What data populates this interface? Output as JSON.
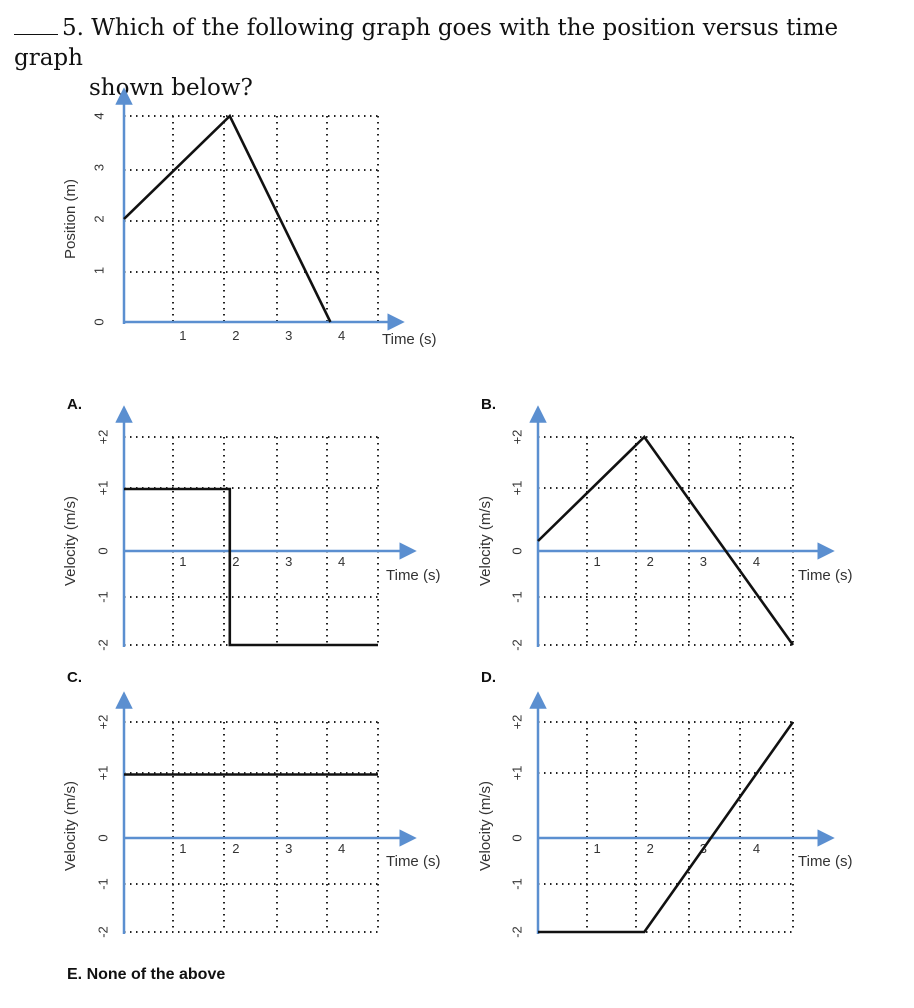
{
  "question": {
    "number": "5.",
    "line1": "Which of the following graph goes with the position versus time graph",
    "line2": "shown below?"
  },
  "chart_data": [
    {
      "id": "position",
      "type": "line",
      "xlabel": "Time (s)",
      "ylabel": "Position (m)",
      "x_ticks": [
        "1",
        "2",
        "3",
        "4"
      ],
      "y_ticks": [
        "0",
        "1",
        "2",
        "3",
        "4"
      ],
      "xlim": [
        0,
        4.8
      ],
      "ylim": [
        0,
        4
      ],
      "x": [
        0,
        2,
        3.9
      ],
      "y": [
        2,
        4,
        0
      ]
    },
    {
      "id": "A",
      "type": "line",
      "choice_label": "A.",
      "xlabel": "Time (s)",
      "ylabel": "Velocity (m/s)",
      "x_ticks": [
        "1",
        "2",
        "3",
        "4"
      ],
      "y_ticks": [
        "+2",
        "+1",
        "0",
        "-1",
        "-2"
      ],
      "xlim": [
        0,
        4.8
      ],
      "ylim": [
        -2,
        2
      ],
      "x": [
        0,
        2,
        2,
        4.8
      ],
      "y": [
        1,
        1,
        -2,
        -2
      ]
    },
    {
      "id": "B",
      "type": "line",
      "choice_label": "B.",
      "xlabel": "Time (s)",
      "ylabel": "Velocity (m/s)",
      "x_ticks": [
        "1",
        "2",
        "3",
        "4"
      ],
      "y_ticks": [
        "+2",
        "+1",
        "0",
        "-1",
        "-2"
      ],
      "xlim": [
        0,
        4.8
      ],
      "ylim": [
        -2,
        2
      ],
      "x": [
        0,
        2,
        4.8
      ],
      "y": [
        0,
        2,
        -2
      ]
    },
    {
      "id": "C",
      "type": "line",
      "choice_label": "C.",
      "xlabel": "Time (s)",
      "ylabel": "Velocity (m/s)",
      "x_ticks": [
        "1",
        "2",
        "3",
        "4"
      ],
      "y_ticks": [
        "+2",
        "+1",
        "0",
        "-1",
        "-2"
      ],
      "xlim": [
        0,
        4.8
      ],
      "ylim": [
        -2,
        2
      ],
      "x": [
        0,
        4.8
      ],
      "y": [
        1,
        1
      ]
    },
    {
      "id": "D",
      "type": "line",
      "choice_label": "D.",
      "xlabel": "Time (s)",
      "ylabel": "Velocity (m/s)",
      "x_ticks": [
        "1",
        "2",
        "3",
        "4"
      ],
      "y_ticks": [
        "+2",
        "+1",
        "0",
        "-1",
        "-2"
      ],
      "xlim": [
        0,
        4.8
      ],
      "ylim": [
        -2,
        2
      ],
      "x": [
        0,
        2,
        4.8
      ],
      "y": [
        -2,
        -2,
        2
      ]
    }
  ],
  "choice_e": "E. None of the above",
  "colors": {
    "axis": "#5b8fd0",
    "grid": "#222222",
    "line": "#111111"
  }
}
